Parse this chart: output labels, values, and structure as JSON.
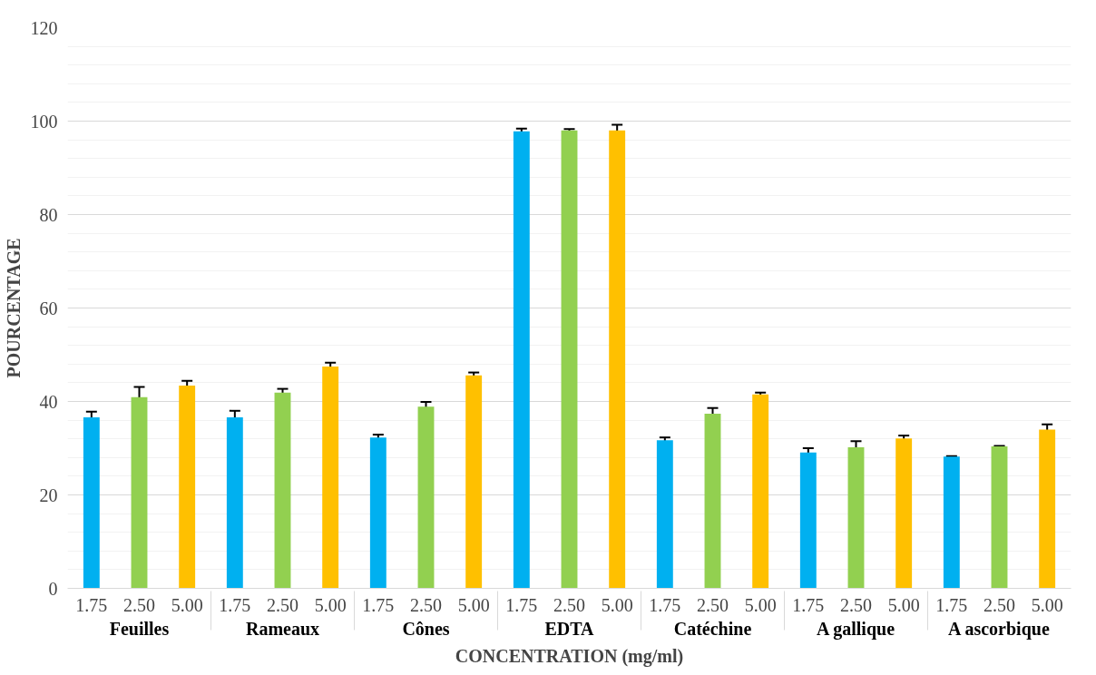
{
  "chart_data": {
    "type": "bar",
    "xlabel": "CONCENTRATION (mg/ml)",
    "ylabel": "POURCENTAGE",
    "categories": [
      "Feuilles",
      "Rameaux",
      "Cônes",
      "EDTA",
      "Catéchine",
      "A gallique",
      "A ascorbique"
    ],
    "series": [
      {
        "name": "1.75",
        "color": "#00b0f0",
        "values": [
          36.6,
          36.6,
          32.3,
          97.8,
          31.7,
          29.1,
          28.2
        ],
        "errors": [
          1.2,
          1.4,
          0.6,
          0.6,
          0.6,
          0.9,
          0.1
        ]
      },
      {
        "name": "2.50",
        "color": "#92d050",
        "values": [
          40.9,
          41.9,
          38.9,
          98.0,
          37.4,
          30.2,
          30.4
        ],
        "errors": [
          2.2,
          0.8,
          1.0,
          0.3,
          1.2,
          1.3,
          0.1
        ]
      },
      {
        "name": "5.00",
        "color": "#ffc000",
        "values": [
          43.4,
          47.5,
          45.6,
          98.0,
          41.5,
          32.1,
          34.0
        ],
        "errors": [
          1.0,
          0.8,
          0.6,
          1.2,
          0.4,
          0.6,
          1.1
        ]
      }
    ],
    "ylim": [
      0,
      120
    ],
    "yticks": [
      0,
      20,
      40,
      60,
      80,
      100,
      120
    ],
    "grid": "y"
  }
}
